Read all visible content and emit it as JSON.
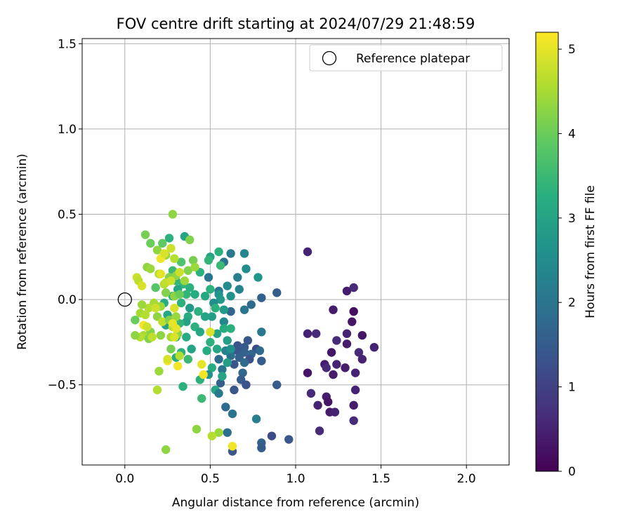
{
  "chart_data": {
    "type": "scatter",
    "title": "FOV centre drift starting at 2024/07/29 21:48:59",
    "xlabel": "Angular distance from reference (arcmin)",
    "ylabel": "Rotation from reference (arcmin)",
    "xlim": [
      -0.25,
      2.25
    ],
    "ylim": [
      -0.97,
      1.53
    ],
    "xticks": [
      0.0,
      0.5,
      1.0,
      1.5,
      2.0
    ],
    "xtick_labels": [
      "0.0",
      "0.5",
      "1.0",
      "1.5",
      "2.0"
    ],
    "yticks": [
      -0.5,
      0.0,
      0.5,
      1.0,
      1.5
    ],
    "ytick_labels": [
      "−0.5",
      "0.0",
      "0.5",
      "1.0",
      "1.5"
    ],
    "grid": true,
    "legend": {
      "position": "top-right",
      "entries": [
        {
          "label": "Reference platepar",
          "marker": "open-circle"
        }
      ]
    },
    "reference_point": {
      "x": 0.0,
      "y": 0.0
    },
    "colorbar": {
      "label": "Hours from first FF file",
      "range": [
        0,
        5.2
      ],
      "ticks": [
        0,
        1,
        2,
        3,
        4,
        5
      ],
      "tick_labels": [
        "0",
        "1",
        "2",
        "3",
        "4",
        "5"
      ],
      "colormap": "viridis"
    },
    "series": [
      {
        "points": [
          [
            1.07,
            0.28,
            0.5
          ],
          [
            1.22,
            -0.06,
            0.4
          ],
          [
            1.3,
            0.05,
            0.4
          ],
          [
            1.34,
            0.07,
            0.6
          ],
          [
            1.34,
            -0.07,
            0.2
          ],
          [
            1.33,
            -0.13,
            0.3
          ],
          [
            1.39,
            -0.21,
            0.3
          ],
          [
            1.3,
            -0.2,
            0.5
          ],
          [
            1.24,
            -0.24,
            0.6
          ],
          [
            1.3,
            -0.26,
            0.4
          ],
          [
            1.46,
            -0.28,
            0.5
          ],
          [
            1.07,
            -0.2,
            0.5
          ],
          [
            1.12,
            -0.2,
            0.6
          ],
          [
            1.21,
            -0.31,
            0.3
          ],
          [
            1.37,
            -0.31,
            0.6
          ],
          [
            1.39,
            -0.35,
            0.5
          ],
          [
            1.17,
            -0.38,
            0.4
          ],
          [
            1.24,
            -0.38,
            0.5
          ],
          [
            1.29,
            -0.4,
            0.4
          ],
          [
            1.18,
            -0.4,
            0.6
          ],
          [
            1.35,
            -0.43,
            0.5
          ],
          [
            1.07,
            -0.43,
            0.3
          ],
          [
            1.22,
            -0.44,
            0.4
          ],
          [
            1.09,
            -0.55,
            0.6
          ],
          [
            1.35,
            -0.53,
            0.5
          ],
          [
            1.18,
            -0.57,
            0.4
          ],
          [
            1.19,
            -0.6,
            0.3
          ],
          [
            1.13,
            -0.62,
            0.5
          ],
          [
            1.34,
            -0.62,
            0.4
          ],
          [
            1.2,
            -0.66,
            0.4
          ],
          [
            1.23,
            -0.66,
            0.5
          ],
          [
            1.34,
            -0.71,
            0.6
          ],
          [
            1.14,
            -0.77,
            0.6
          ],
          [
            0.89,
            0.04,
            1.5
          ],
          [
            0.8,
            0.01,
            1.6
          ],
          [
            0.74,
            -0.03,
            1.8
          ],
          [
            0.7,
            -0.06,
            2.0
          ],
          [
            0.62,
            -0.07,
            1.7
          ],
          [
            0.8,
            -0.19,
            2.1
          ],
          [
            0.72,
            -0.24,
            1.4
          ],
          [
            0.66,
            -0.27,
            1.3
          ],
          [
            0.7,
            -0.28,
            1.5
          ],
          [
            0.77,
            -0.29,
            1.2
          ],
          [
            0.79,
            -0.3,
            1.8
          ],
          [
            0.66,
            -0.3,
            1.4
          ],
          [
            0.7,
            -0.31,
            1.6
          ],
          [
            0.74,
            -0.32,
            1.7
          ],
          [
            0.62,
            -0.33,
            1.9
          ],
          [
            0.67,
            -0.34,
            1.6
          ],
          [
            0.73,
            -0.35,
            1.3
          ],
          [
            0.8,
            -0.36,
            1.5
          ],
          [
            0.7,
            -0.37,
            1.8
          ],
          [
            0.64,
            -0.38,
            1.4
          ],
          [
            0.57,
            -0.41,
            2.0
          ],
          [
            0.69,
            -0.43,
            1.7
          ],
          [
            0.68,
            -0.47,
            1.5
          ],
          [
            0.71,
            -0.5,
            1.3
          ],
          [
            0.89,
            -0.5,
            1.5
          ],
          [
            0.56,
            -0.49,
            1.6
          ],
          [
            0.64,
            -0.53,
            1.4
          ],
          [
            0.59,
            -0.63,
            1.8
          ],
          [
            0.63,
            -0.67,
            2.0
          ],
          [
            0.77,
            -0.7,
            2.2
          ],
          [
            0.6,
            -0.78,
            1.9
          ],
          [
            0.8,
            -0.84,
            1.6
          ],
          [
            0.86,
            -0.8,
            1.2
          ],
          [
            0.96,
            -0.82,
            1.4
          ],
          [
            0.8,
            -0.87,
            1.5
          ],
          [
            0.63,
            -0.89,
            1.4
          ],
          [
            0.7,
            0.27,
            2.4
          ],
          [
            0.58,
            0.22,
            2.0
          ],
          [
            0.62,
            0.27,
            2.1
          ],
          [
            0.71,
            0.18,
            2.5
          ],
          [
            0.78,
            0.13,
            2.7
          ],
          [
            0.66,
            0.13,
            2.2
          ],
          [
            0.6,
            0.08,
            2.5
          ],
          [
            0.67,
            0.06,
            2.3
          ],
          [
            0.55,
            0.05,
            2.0
          ],
          [
            0.5,
            0.06,
            3.3
          ],
          [
            0.49,
            0.13,
            2.0
          ],
          [
            0.55,
            0.03,
            2.7
          ],
          [
            0.62,
            0.02,
            2.6
          ],
          [
            0.56,
            0.0,
            2.8
          ],
          [
            0.47,
            0.02,
            3.1
          ],
          [
            0.52,
            -0.02,
            2.5
          ],
          [
            0.58,
            -0.06,
            2.8
          ],
          [
            0.53,
            -0.05,
            3.3
          ],
          [
            0.51,
            -0.1,
            2.9
          ],
          [
            0.58,
            -0.13,
            2.4
          ],
          [
            0.47,
            -0.1,
            3.0
          ],
          [
            0.58,
            -0.17,
            3.2
          ],
          [
            0.62,
            -0.17,
            3.3
          ],
          [
            0.54,
            -0.2,
            3.0
          ],
          [
            0.6,
            -0.24,
            2.9
          ],
          [
            0.5,
            -0.25,
            3.3
          ],
          [
            0.54,
            -0.29,
            3.1
          ],
          [
            0.59,
            -0.3,
            2.3
          ],
          [
            0.62,
            -0.29,
            2.6
          ],
          [
            0.48,
            -0.3,
            3.2
          ],
          [
            0.55,
            -0.35,
            1.8
          ],
          [
            0.6,
            -0.37,
            2.9
          ],
          [
            0.51,
            -0.4,
            3.2
          ],
          [
            0.49,
            -0.44,
            2.6
          ],
          [
            0.57,
            -0.45,
            3.0
          ],
          [
            0.53,
            -0.53,
            3.1
          ],
          [
            0.44,
            -0.47,
            3.3
          ],
          [
            0.55,
            -0.55,
            2.1
          ],
          [
            0.45,
            -0.58,
            3.5
          ],
          [
            0.34,
            -0.51,
            3.3
          ],
          [
            0.55,
            0.28,
            3.3
          ],
          [
            0.56,
            0.2,
            3.5
          ],
          [
            0.5,
            0.25,
            3.0
          ],
          [
            0.49,
            0.23,
            3.4
          ],
          [
            0.44,
            0.16,
            3.3
          ],
          [
            0.34,
            0.09,
            3.4
          ],
          [
            0.38,
            0.07,
            3.3
          ],
          [
            0.41,
            0.03,
            3.2
          ],
          [
            0.36,
            0.03,
            3.4
          ],
          [
            0.33,
            -0.02,
            3.3
          ],
          [
            0.38,
            -0.05,
            2.8
          ],
          [
            0.43,
            -0.07,
            3.3
          ],
          [
            0.37,
            -0.1,
            3.2
          ],
          [
            0.36,
            -0.13,
            3.0
          ],
          [
            0.32,
            -0.14,
            3.4
          ],
          [
            0.41,
            -0.16,
            3.3
          ],
          [
            0.44,
            -0.19,
            3.1
          ],
          [
            0.36,
            -0.22,
            3.2
          ],
          [
            0.3,
            -0.22,
            3.4
          ],
          [
            0.39,
            -0.29,
            3.0
          ],
          [
            0.33,
            -0.31,
            3.3
          ],
          [
            0.37,
            -0.35,
            3.5
          ],
          [
            0.3,
            -0.34,
            3.2
          ],
          [
            0.24,
            -0.15,
            3.0
          ],
          [
            0.25,
            -0.09,
            3.1
          ],
          [
            0.23,
            -0.02,
            3.2
          ],
          [
            0.28,
            0.02,
            3.3
          ],
          [
            0.31,
            0.06,
            3.0
          ],
          [
            0.35,
            0.37,
            3.0
          ],
          [
            0.26,
            0.36,
            3.3
          ],
          [
            0.33,
            0.22,
            3.7
          ],
          [
            0.28,
            0.17,
            3.5
          ],
          [
            0.3,
            0.11,
            3.4
          ],
          [
            0.28,
            0.5,
            4.3
          ],
          [
            0.38,
            0.35,
            4.2
          ],
          [
            0.12,
            0.38,
            4.1
          ],
          [
            0.15,
            0.33,
            4.0
          ],
          [
            0.22,
            0.33,
            3.9
          ],
          [
            0.19,
            0.29,
            4.3
          ],
          [
            0.24,
            0.26,
            4.4
          ],
          [
            0.29,
            0.24,
            4.6
          ],
          [
            0.4,
            0.23,
            4.1
          ],
          [
            0.13,
            0.19,
            4.3
          ],
          [
            0.15,
            0.18,
            4.4
          ],
          [
            0.2,
            0.15,
            4.5
          ],
          [
            0.26,
            0.13,
            4.2
          ],
          [
            0.3,
            0.14,
            4.3
          ],
          [
            0.37,
            0.17,
            4.2
          ],
          [
            0.41,
            0.19,
            4.4
          ],
          [
            0.23,
            0.09,
            4.6
          ],
          [
            0.18,
            0.07,
            3.8
          ],
          [
            0.24,
            0.04,
            4.2
          ],
          [
            0.29,
            0.02,
            4.3
          ],
          [
            0.32,
            0.03,
            4.0
          ],
          [
            0.17,
            -0.02,
            4.5
          ],
          [
            0.21,
            -0.04,
            4.4
          ],
          [
            0.14,
            -0.05,
            4.6
          ],
          [
            0.1,
            -0.03,
            4.4
          ],
          [
            0.09,
            -0.08,
            4.5
          ],
          [
            0.12,
            -0.09,
            4.6
          ],
          [
            0.19,
            -0.1,
            4.3
          ],
          [
            0.22,
            -0.13,
            4.7
          ],
          [
            0.26,
            -0.12,
            4.2
          ],
          [
            0.3,
            -0.1,
            4.4
          ],
          [
            0.28,
            -0.16,
            4.6
          ],
          [
            0.31,
            -0.2,
            4.3
          ],
          [
            0.27,
            -0.22,
            4.5
          ],
          [
            0.21,
            -0.21,
            4.3
          ],
          [
            0.15,
            -0.19,
            4.2
          ],
          [
            0.11,
            -0.21,
            4.5
          ],
          [
            0.09,
            -0.22,
            4.6
          ],
          [
            0.14,
            -0.23,
            4.2
          ],
          [
            0.06,
            -0.12,
            4.0
          ],
          [
            0.06,
            -0.21,
            4.3
          ],
          [
            0.27,
            -0.29,
            4.1
          ],
          [
            0.32,
            -0.33,
            4.6
          ],
          [
            0.2,
            -0.42,
            4.4
          ],
          [
            0.19,
            -0.53,
            4.6
          ],
          [
            0.42,
            -0.76,
            4.3
          ],
          [
            0.55,
            -0.78,
            4.4
          ],
          [
            0.51,
            -0.8,
            4.6
          ],
          [
            0.24,
            -0.88,
            4.3
          ],
          [
            0.07,
            0.13,
            4.8
          ],
          [
            0.08,
            0.11,
            4.7
          ],
          [
            0.1,
            0.08,
            4.9
          ],
          [
            0.35,
            0.11,
            4.4
          ],
          [
            0.21,
            0.24,
            5.1
          ],
          [
            0.23,
            0.27,
            4.9
          ],
          [
            0.27,
            0.3,
            4.8
          ],
          [
            0.21,
            0.15,
            5.0
          ],
          [
            0.32,
            0.16,
            4.8
          ],
          [
            0.24,
            0.1,
            4.7
          ],
          [
            0.27,
            0.11,
            4.8
          ],
          [
            0.29,
            -0.05,
            4.9
          ],
          [
            0.18,
            -0.05,
            4.8
          ],
          [
            0.28,
            -0.14,
            5.0
          ],
          [
            0.11,
            -0.15,
            5.1
          ],
          [
            0.3,
            -0.17,
            5.0
          ],
          [
            0.29,
            -0.22,
            4.9
          ],
          [
            0.13,
            -0.16,
            4.8
          ],
          [
            0.16,
            -0.22,
            4.7
          ],
          [
            0.25,
            -0.36,
            5.1
          ],
          [
            0.25,
            -0.35,
            4.9
          ],
          [
            0.31,
            -0.39,
            5.1
          ],
          [
            0.45,
            -0.38,
            5.0
          ],
          [
            0.46,
            -0.44,
            5.1
          ],
          [
            0.5,
            -0.19,
            4.9
          ],
          [
            0.63,
            -0.86,
            5.1
          ]
        ]
      }
    ]
  }
}
